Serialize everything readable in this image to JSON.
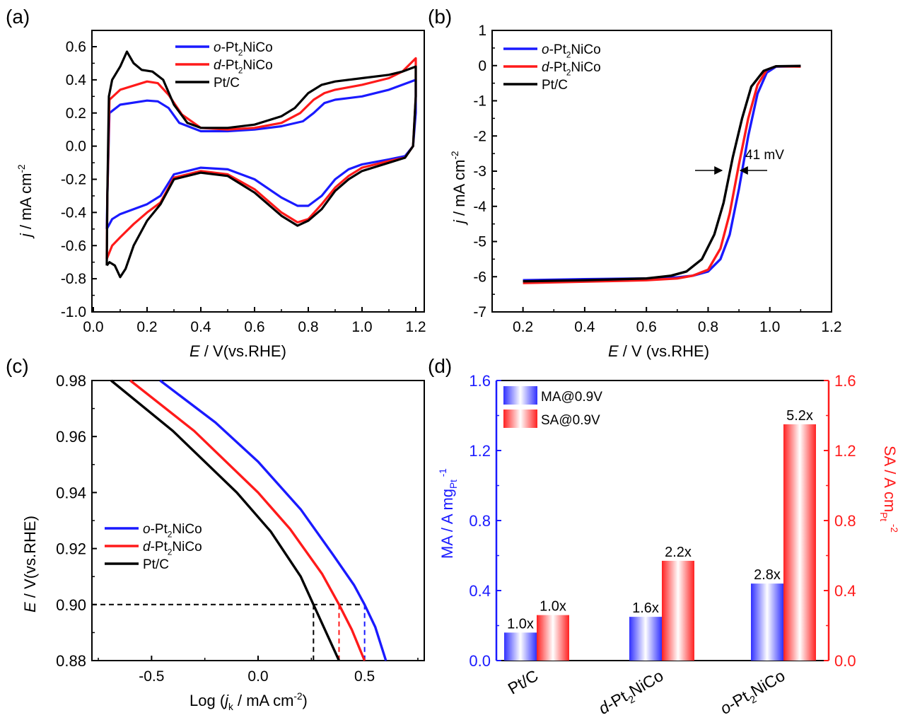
{
  "colors": {
    "blue": "#1a1aff",
    "red": "#ff1a1a",
    "black": "#000000"
  },
  "chart_data": [
    {
      "id": "a",
      "type": "line",
      "panel_label": "(a)",
      "xlabel": "E / V(vs.RHE)",
      "ylabel": "j / mA cm-2",
      "xlim": [
        0.0,
        1.2
      ],
      "ylim": [
        -1.0,
        0.6
      ],
      "xticks": [
        "0.0",
        "0.2",
        "0.4",
        "0.6",
        "0.8",
        "1.0",
        "1.2"
      ],
      "yticks": [
        "-1.0",
        "-0.8",
        "-0.6",
        "-0.4",
        "-0.2",
        "0.0",
        "0.2",
        "0.4",
        "0.6"
      ],
      "legend_position": "top-center",
      "series": [
        {
          "name": "o-Pt2NiCo",
          "color": "#1a1aff",
          "points": [
            [
              0.05,
              -0.5
            ],
            [
              0.052,
              -0.3
            ],
            [
              0.06,
              0.2
            ],
            [
              0.1,
              0.25
            ],
            [
              0.2,
              0.275
            ],
            [
              0.24,
              0.27
            ],
            [
              0.28,
              0.23
            ],
            [
              0.32,
              0.14
            ],
            [
              0.4,
              0.09
            ],
            [
              0.5,
              0.09
            ],
            [
              0.6,
              0.1
            ],
            [
              0.7,
              0.12
            ],
            [
              0.78,
              0.15
            ],
            [
              0.82,
              0.2
            ],
            [
              0.86,
              0.26
            ],
            [
              0.9,
              0.28
            ],
            [
              0.95,
              0.29
            ],
            [
              1.0,
              0.3
            ],
            [
              1.1,
              0.34
            ],
            [
              1.2,
              0.4
            ],
            [
              1.2,
              0.2
            ],
            [
              1.19,
              0.0
            ],
            [
              1.16,
              -0.06
            ],
            [
              1.1,
              -0.08
            ],
            [
              1.0,
              -0.11
            ],
            [
              0.95,
              -0.14
            ],
            [
              0.9,
              -0.2
            ],
            [
              0.85,
              -0.3
            ],
            [
              0.8,
              -0.36
            ],
            [
              0.76,
              -0.36
            ],
            [
              0.7,
              -0.31
            ],
            [
              0.6,
              -0.2
            ],
            [
              0.5,
              -0.14
            ],
            [
              0.4,
              -0.13
            ],
            [
              0.3,
              -0.17
            ],
            [
              0.25,
              -0.3
            ],
            [
              0.2,
              -0.35
            ],
            [
              0.15,
              -0.38
            ],
            [
              0.1,
              -0.41
            ],
            [
              0.07,
              -0.44
            ],
            [
              0.05,
              -0.5
            ]
          ]
        },
        {
          "name": "d-Pt2NiCo",
          "color": "#ff1a1a",
          "points": [
            [
              0.05,
              -0.68
            ],
            [
              0.052,
              -0.3
            ],
            [
              0.06,
              0.28
            ],
            [
              0.1,
              0.34
            ],
            [
              0.2,
              0.39
            ],
            [
              0.24,
              0.38
            ],
            [
              0.28,
              0.31
            ],
            [
              0.33,
              0.19
            ],
            [
              0.4,
              0.11
            ],
            [
              0.5,
              0.1
            ],
            [
              0.6,
              0.11
            ],
            [
              0.7,
              0.14
            ],
            [
              0.77,
              0.2
            ],
            [
              0.82,
              0.28
            ],
            [
              0.86,
              0.32
            ],
            [
              0.9,
              0.34
            ],
            [
              1.0,
              0.37
            ],
            [
              1.1,
              0.41
            ],
            [
              1.15,
              0.45
            ],
            [
              1.2,
              0.53
            ],
            [
              1.2,
              0.3
            ],
            [
              1.19,
              0.0
            ],
            [
              1.16,
              -0.07
            ],
            [
              1.1,
              -0.09
            ],
            [
              1.0,
              -0.13
            ],
            [
              0.95,
              -0.18
            ],
            [
              0.9,
              -0.25
            ],
            [
              0.85,
              -0.35
            ],
            [
              0.8,
              -0.44
            ],
            [
              0.76,
              -0.46
            ],
            [
              0.7,
              -0.4
            ],
            [
              0.6,
              -0.26
            ],
            [
              0.5,
              -0.17
            ],
            [
              0.4,
              -0.15
            ],
            [
              0.3,
              -0.19
            ],
            [
              0.25,
              -0.34
            ],
            [
              0.2,
              -0.4
            ],
            [
              0.15,
              -0.47
            ],
            [
              0.1,
              -0.55
            ],
            [
              0.07,
              -0.6
            ],
            [
              0.05,
              -0.68
            ]
          ]
        },
        {
          "name": "Pt/C",
          "color": "#000000",
          "points": [
            [
              0.05,
              -0.72
            ],
            [
              0.052,
              -0.3
            ],
            [
              0.058,
              0.3
            ],
            [
              0.07,
              0.4
            ],
            [
              0.1,
              0.48
            ],
            [
              0.125,
              0.57
            ],
            [
              0.15,
              0.5
            ],
            [
              0.18,
              0.46
            ],
            [
              0.22,
              0.45
            ],
            [
              0.26,
              0.4
            ],
            [
              0.3,
              0.25
            ],
            [
              0.35,
              0.14
            ],
            [
              0.4,
              0.11
            ],
            [
              0.5,
              0.11
            ],
            [
              0.6,
              0.13
            ],
            [
              0.7,
              0.18
            ],
            [
              0.75,
              0.23
            ],
            [
              0.8,
              0.32
            ],
            [
              0.85,
              0.37
            ],
            [
              0.9,
              0.39
            ],
            [
              1.0,
              0.41
            ],
            [
              1.1,
              0.43
            ],
            [
              1.15,
              0.45
            ],
            [
              1.2,
              0.48
            ],
            [
              1.2,
              0.3
            ],
            [
              1.19,
              0.0
            ],
            [
              1.16,
              -0.07
            ],
            [
              1.1,
              -0.1
            ],
            [
              1.0,
              -0.15
            ],
            [
              0.95,
              -0.2
            ],
            [
              0.9,
              -0.27
            ],
            [
              0.85,
              -0.38
            ],
            [
              0.8,
              -0.45
            ],
            [
              0.76,
              -0.48
            ],
            [
              0.7,
              -0.42
            ],
            [
              0.6,
              -0.28
            ],
            [
              0.5,
              -0.18
            ],
            [
              0.4,
              -0.16
            ],
            [
              0.3,
              -0.2
            ],
            [
              0.25,
              -0.35
            ],
            [
              0.2,
              -0.45
            ],
            [
              0.15,
              -0.6
            ],
            [
              0.12,
              -0.74
            ],
            [
              0.1,
              -0.79
            ],
            [
              0.08,
              -0.72
            ],
            [
              0.06,
              -0.7
            ],
            [
              0.05,
              -0.72
            ]
          ]
        }
      ]
    },
    {
      "id": "b",
      "type": "line",
      "panel_label": "(b)",
      "xlabel": "E / V (vs.RHE)",
      "ylabel": "j / mA cm-2",
      "xlim": [
        0.1,
        1.2
      ],
      "ylim": [
        -7,
        1
      ],
      "xticks": [
        "0.2",
        "0.4",
        "0.6",
        "0.8",
        "1.0",
        "1.2"
      ],
      "yticks": [
        "-7",
        "-6",
        "-5",
        "-4",
        "-3",
        "-2",
        "-1",
        "0",
        "1"
      ],
      "legend_position": "top-left",
      "annotation": "41 mV",
      "series": [
        {
          "name": "o-Pt2NiCo",
          "color": "#1a1aff",
          "points": [
            [
              0.2,
              -6.1
            ],
            [
              0.4,
              -6.07
            ],
            [
              0.6,
              -6.05
            ],
            [
              0.7,
              -6.02
            ],
            [
              0.75,
              -5.97
            ],
            [
              0.8,
              -5.85
            ],
            [
              0.84,
              -5.5
            ],
            [
              0.87,
              -4.8
            ],
            [
              0.9,
              -3.5
            ],
            [
              0.93,
              -2.0
            ],
            [
              0.96,
              -0.8
            ],
            [
              0.99,
              -0.2
            ],
            [
              1.02,
              -0.03
            ],
            [
              1.1,
              -0.02
            ]
          ]
        },
        {
          "name": "d-Pt2NiCo",
          "color": "#ff1a1a",
          "points": [
            [
              0.2,
              -6.18
            ],
            [
              0.4,
              -6.14
            ],
            [
              0.6,
              -6.1
            ],
            [
              0.7,
              -6.05
            ],
            [
              0.75,
              -5.97
            ],
            [
              0.8,
              -5.8
            ],
            [
              0.84,
              -5.2
            ],
            [
              0.87,
              -4.2
            ],
            [
              0.9,
              -2.8
            ],
            [
              0.93,
              -1.5
            ],
            [
              0.96,
              -0.55
            ],
            [
              0.99,
              -0.12
            ],
            [
              1.02,
              -0.02
            ],
            [
              1.1,
              -0.03
            ]
          ]
        },
        {
          "name": "Pt/C",
          "color": "#000000",
          "points": [
            [
              0.2,
              -6.13
            ],
            [
              0.4,
              -6.1
            ],
            [
              0.6,
              -6.05
            ],
            [
              0.68,
              -5.97
            ],
            [
              0.73,
              -5.85
            ],
            [
              0.78,
              -5.5
            ],
            [
              0.82,
              -4.8
            ],
            [
              0.85,
              -3.9
            ],
            [
              0.88,
              -2.6
            ],
            [
              0.91,
              -1.5
            ],
            [
              0.94,
              -0.6
            ],
            [
              0.98,
              -0.15
            ],
            [
              1.02,
              -0.02
            ],
            [
              1.1,
              -0.01
            ]
          ]
        }
      ]
    },
    {
      "id": "c",
      "type": "line",
      "panel_label": "(c)",
      "xlabel": "Log (jk / mA cm-2)",
      "ylabel": "E / V(vs.RHE)",
      "xlim": [
        -0.78,
        0.78
      ],
      "ylim": [
        0.88,
        0.98
      ],
      "xticks": [
        "-0.5",
        "0.0",
        "0.5"
      ],
      "yticks": [
        "0.88",
        "0.90",
        "0.92",
        "0.94",
        "0.96",
        "0.98"
      ],
      "legend_position": "center-left",
      "reference_E": 0.9,
      "markers": [
        {
          "series": "Pt/C",
          "x": 0.26,
          "color": "#000000"
        },
        {
          "series": "d-Pt2NiCo",
          "x": 0.38,
          "color": "#ff1a1a"
        },
        {
          "series": "o-Pt2NiCo",
          "x": 0.5,
          "color": "#1a1aff"
        }
      ],
      "series": [
        {
          "name": "o-Pt2NiCo",
          "color": "#1a1aff",
          "points": [
            [
              -0.46,
              0.98
            ],
            [
              -0.2,
              0.965
            ],
            [
              0.0,
              0.951
            ],
            [
              0.2,
              0.934
            ],
            [
              0.35,
              0.918
            ],
            [
              0.45,
              0.907
            ],
            [
              0.5,
              0.9
            ],
            [
              0.55,
              0.892
            ],
            [
              0.6,
              0.88
            ]
          ]
        },
        {
          "name": "d-Pt2NiCo",
          "color": "#ff1a1a",
          "points": [
            [
              -0.6,
              0.98
            ],
            [
              -0.3,
              0.962
            ],
            [
              0.0,
              0.94
            ],
            [
              0.15,
              0.927
            ],
            [
              0.3,
              0.911
            ],
            [
              0.38,
              0.9
            ],
            [
              0.44,
              0.891
            ],
            [
              0.5,
              0.88
            ]
          ]
        },
        {
          "name": "Pt/C",
          "color": "#000000",
          "points": [
            [
              -0.69,
              0.98
            ],
            [
              -0.4,
              0.962
            ],
            [
              -0.1,
              0.94
            ],
            [
              0.06,
              0.926
            ],
            [
              0.2,
              0.91
            ],
            [
              0.26,
              0.9
            ],
            [
              0.32,
              0.89
            ],
            [
              0.38,
              0.88
            ]
          ]
        }
      ]
    },
    {
      "id": "d",
      "type": "bar",
      "panel_label": "(d)",
      "categories": [
        "Pt/C",
        "d-Pt2NiCo",
        "o-Pt2NiCo"
      ],
      "ylabel": "MA / A mgPt-1",
      "y2label": "SA / A cmPt-2",
      "ylim": [
        0.0,
        1.6
      ],
      "y2lim": [
        0.0,
        1.6
      ],
      "yticks": [
        "0.0",
        "0.4",
        "0.8",
        "1.2",
        "1.6"
      ],
      "y2ticks": [
        "0.0",
        "0.4",
        "0.8",
        "1.2",
        "1.6"
      ],
      "legend_position": "top-left",
      "series": [
        {
          "name": "MA@0.9V",
          "color": "#1a1aff",
          "axis": "left",
          "values": [
            0.16,
            0.25,
            0.44
          ],
          "labels": [
            "1.0x",
            "1.6x",
            "2.8x"
          ]
        },
        {
          "name": "SA@0.9V",
          "color": "#ff1a1a",
          "axis": "right",
          "values": [
            0.26,
            0.57,
            1.35
          ],
          "labels": [
            "1.0x",
            "2.2x",
            "5.2x"
          ]
        }
      ]
    }
  ]
}
